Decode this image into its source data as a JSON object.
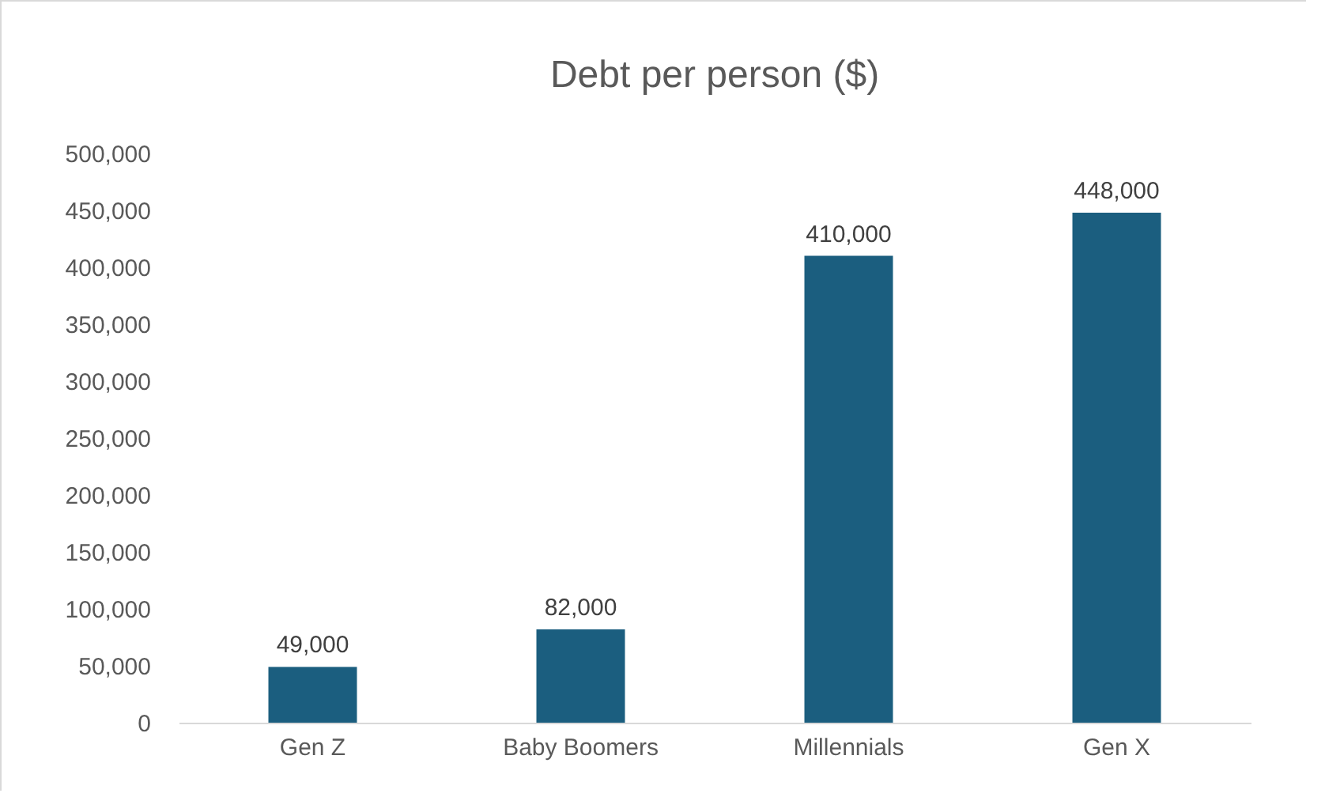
{
  "chart_data": {
    "type": "bar",
    "title": "Debt per person ($)",
    "categories": [
      "Gen Z",
      "Baby Boomers",
      "Millennials",
      "Gen X"
    ],
    "values": [
      49000,
      82000,
      410000,
      448000
    ],
    "value_labels": [
      "49,000",
      "82,000",
      "410,000",
      "448,000"
    ],
    "color": "#1b5e7f",
    "ylim": [
      0,
      500000
    ],
    "yticks": [
      0,
      {
        "value": 50000,
        "label": "50,000"
      },
      {
        "value": 100000,
        "label": "100,000"
      },
      {
        "value": 150000,
        "label": "150,000"
      },
      {
        "value": 200000,
        "label": "200,000"
      },
      {
        "value": 250000,
        "label": "250,000"
      },
      {
        "value": 300000,
        "label": "300,000"
      },
      {
        "value": 350000,
        "label": "350,000"
      },
      {
        "value": 400000,
        "label": "400,000"
      },
      {
        "value": 450000,
        "label": "450,000"
      },
      {
        "value": 500000,
        "label": "500,000"
      }
    ],
    "grid": false
  }
}
